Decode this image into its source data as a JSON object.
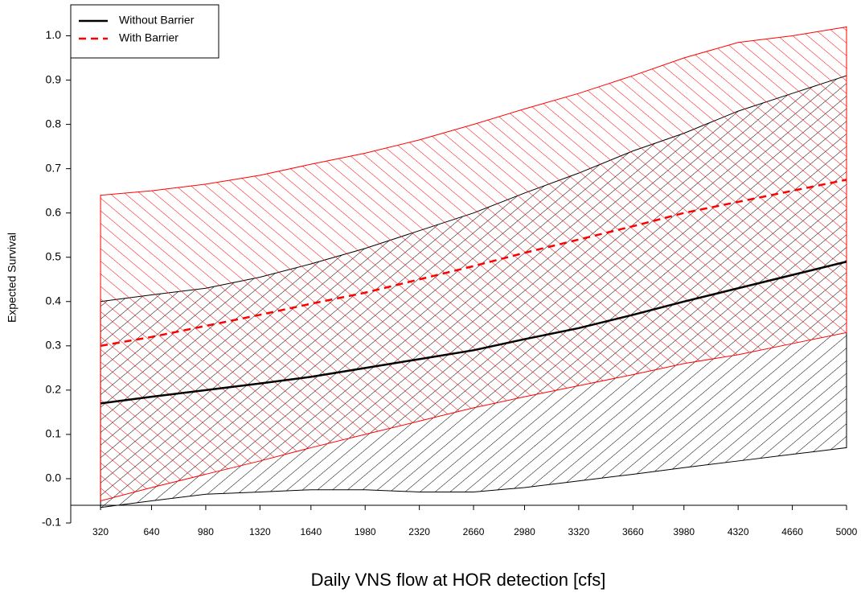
{
  "chart_data": {
    "type": "line-band",
    "x_label": "Daily VNS flow at HOR detection [cfs]",
    "y_label": "Expected Survival",
    "x": [
      320,
      640,
      980,
      1320,
      1640,
      1980,
      2320,
      2660,
      2980,
      3320,
      3660,
      3980,
      4320,
      4660,
      5000
    ],
    "xlim": [
      133,
      5000
    ],
    "xticks": [
      320,
      640,
      980,
      1320,
      1640,
      1980,
      2320,
      2660,
      2980,
      3320,
      3660,
      3980,
      4320,
      4660,
      5000
    ],
    "ylim": [
      -0.1,
      1.03
    ],
    "yticks": [
      {
        "value": -0.1,
        "label": "-0.1"
      },
      {
        "value": 0,
        "label": "0.0"
      },
      {
        "value": 0.1,
        "label": "0.1"
      },
      {
        "value": 0.2,
        "label": "0.2"
      },
      {
        "value": 0.3,
        "label": "0.3"
      },
      {
        "value": 0.4,
        "label": "0.4"
      },
      {
        "value": 0.5,
        "label": "0.5"
      },
      {
        "value": 0.6,
        "label": "0.6"
      },
      {
        "value": 0.7,
        "label": "0.7"
      },
      {
        "value": 0.8,
        "label": "0.8"
      },
      {
        "value": 0.9,
        "label": "0.9"
      },
      {
        "value": 1,
        "label": "1.0"
      }
    ],
    "legend_position": "top-left",
    "series": [
      {
        "name": "Without Barrier",
        "color": "#000000",
        "linestyle": "solid",
        "values": [
          0.17,
          0.185,
          0.2,
          0.215,
          0.23,
          0.25,
          0.27,
          0.29,
          0.315,
          0.34,
          0.37,
          0.4,
          0.43,
          0.46,
          0.49
        ],
        "upper": [
          0.4,
          0.415,
          0.43,
          0.455,
          0.485,
          0.52,
          0.56,
          0.6,
          0.645,
          0.69,
          0.74,
          0.78,
          0.83,
          0.87,
          0.91
        ],
        "lower": [
          -0.065,
          -0.05,
          -0.035,
          -0.03,
          -0.025,
          -0.025,
          -0.03,
          -0.03,
          -0.02,
          -0.005,
          0.01,
          0.025,
          0.04,
          0.055,
          0.07
        ]
      },
      {
        "name": "With Barrier",
        "color": "#ff0000",
        "linestyle": "dashed",
        "values": [
          0.3,
          0.32,
          0.345,
          0.37,
          0.395,
          0.42,
          0.45,
          0.48,
          0.51,
          0.54,
          0.57,
          0.6,
          0.625,
          0.65,
          0.675
        ],
        "upper": [
          0.64,
          0.65,
          0.665,
          0.685,
          0.71,
          0.735,
          0.765,
          0.8,
          0.835,
          0.87,
          0.91,
          0.95,
          0.985,
          1.0,
          1.02
        ],
        "lower": [
          -0.05,
          -0.02,
          0.01,
          0.04,
          0.07,
          0.1,
          0.13,
          0.16,
          0.185,
          0.21,
          0.235,
          0.26,
          0.28,
          0.305,
          0.33
        ]
      }
    ]
  }
}
